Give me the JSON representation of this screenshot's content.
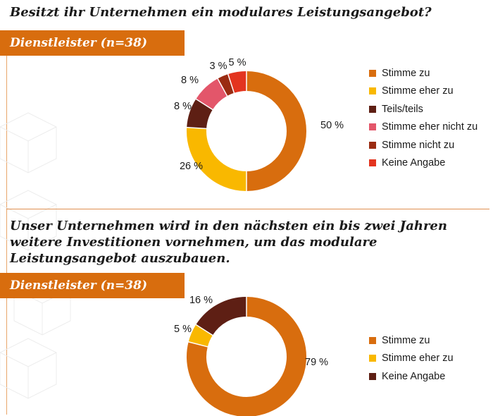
{
  "chart_data": [
    {
      "type": "pie",
      "title": "Besitzt ihr Unternehmen ein modulares Leistungsangebot?",
      "subtitle": "Dienstleister (n=38)",
      "categories": [
        "Stimme zu",
        "Stimme eher zu",
        "Teils/teils",
        "Stimme eher nicht zu",
        "Stimme nicht zu",
        "Keine Angabe"
      ],
      "values": [
        50,
        26,
        8,
        8,
        3,
        5
      ],
      "data_labels": [
        "50 %",
        "26 %",
        "8 %",
        "8 %",
        "3 %",
        "5 %"
      ],
      "colors": [
        "#d86d0e",
        "#f9b800",
        "#5e1f14",
        "#e3566a",
        "#9a2b12",
        "#e3341f"
      ],
      "donut": true,
      "legend_position": "right"
    },
    {
      "type": "pie",
      "title": "Unser Unternehmen wird in den nächsten ein bis zwei Jahren weitere Investitionen vornehmen, um das modulare Leistungsangebot auszubauen.",
      "subtitle": "Dienstleister (n=38)",
      "categories": [
        "Stimme zu",
        "Stimme eher zu",
        "Keine Angabe"
      ],
      "values": [
        79,
        5,
        16
      ],
      "data_labels": [
        "79 %",
        "5 %",
        "16 %"
      ],
      "colors": [
        "#d86d0e",
        "#f9b800",
        "#5e1f14"
      ],
      "donut": true,
      "legend_position": "right"
    }
  ]
}
